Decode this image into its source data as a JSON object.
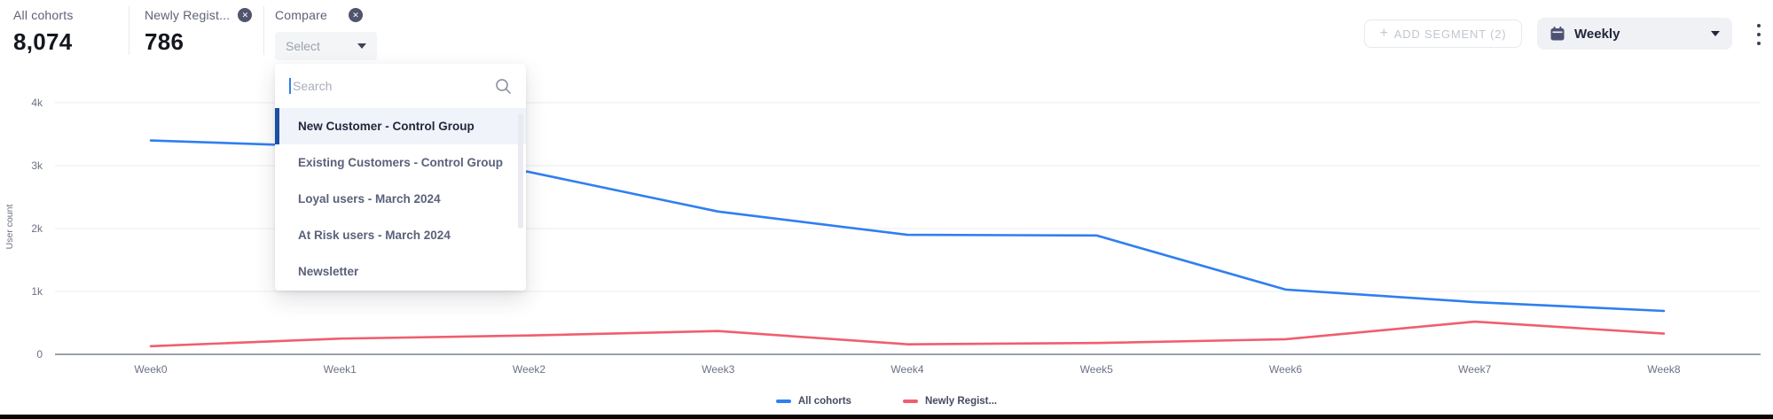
{
  "header": {
    "metrics": [
      {
        "label": "All cohorts",
        "value": "8,074",
        "removable": false
      },
      {
        "label": "Newly Regist...",
        "value": "786",
        "removable": true
      },
      {
        "label": "Compare",
        "removable": true,
        "select_placeholder": "Select"
      }
    ],
    "add_segment_label": "ADD SEGMENT (2)",
    "add_segment_plus": "+",
    "granularity_label": "Weekly"
  },
  "compare_dropdown": {
    "search_placeholder": "Search",
    "options": [
      {
        "label": "New Customer - Control Group",
        "active": true
      },
      {
        "label": "Existing Customers - Control Group",
        "active": false
      },
      {
        "label": "Loyal users - March 2024",
        "active": false
      },
      {
        "label": "At Risk users - March 2024",
        "active": false
      },
      {
        "label": "Newsletter",
        "active": false
      }
    ]
  },
  "chart_data": {
    "type": "line",
    "categories": [
      "Week0",
      "Week1",
      "Week2",
      "Week3",
      "Week4",
      "Week5",
      "Week6",
      "Week7",
      "Week8"
    ],
    "series": [
      {
        "name": "All cohorts",
        "color": "#2e7ff1",
        "values": [
          3400,
          3300,
          2900,
          2270,
          1900,
          1890,
          1030,
          830,
          690
        ]
      },
      {
        "name": "Newly Regist...",
        "color": "#ef5e70",
        "values": [
          130,
          250,
          300,
          370,
          160,
          180,
          240,
          520,
          330
        ]
      }
    ],
    "title": "",
    "xlabel": "",
    "ylabel": "User count",
    "yticks": [
      {
        "label": "4k",
        "value": 4000
      },
      {
        "label": "3k",
        "value": 3000
      },
      {
        "label": "2k",
        "value": 2000
      },
      {
        "label": "1k",
        "value": 1000
      },
      {
        "label": "0",
        "value": 0
      }
    ],
    "ylim": [
      0,
      4300
    ],
    "grid": true,
    "legend_position": "bottom"
  },
  "colors": {
    "series_blue": "#2e7ff1",
    "series_red": "#ef5e70",
    "active_option_bar": "#1c4fa0",
    "gridline": "#ededf1",
    "axis_line": "#9ba0aa"
  }
}
